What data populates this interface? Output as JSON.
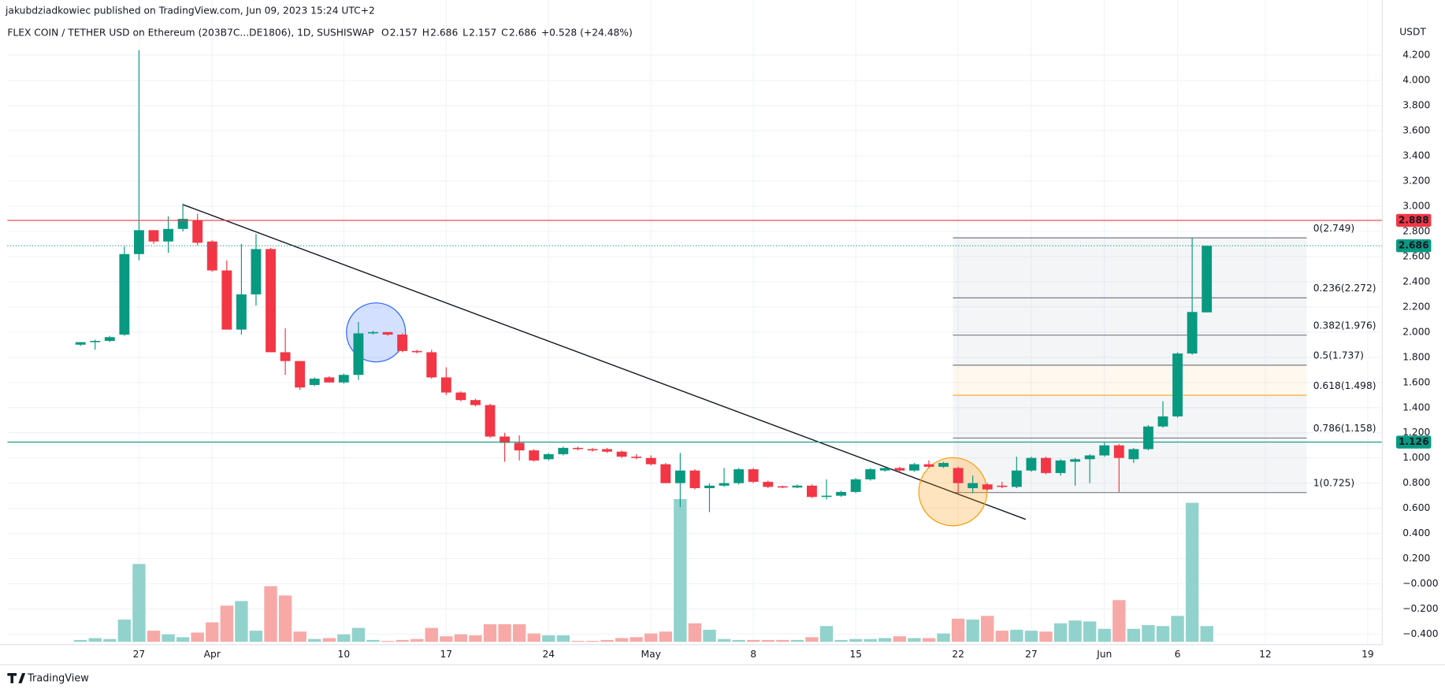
{
  "header": {
    "author_line": "jakubdziadkowiec published on TradingView.com, Jun 09, 2023 15:24 UTC+2",
    "symbol": "FLEX COIN / TETHER USD on Ethereum (203B7C...DE1806), 1D, SUSHISWAP",
    "fields": [
      {
        "key": "O",
        "value": "2.157"
      },
      {
        "key": "H",
        "value": "2.686"
      },
      {
        "key": "L",
        "value": "2.157"
      },
      {
        "key": "C",
        "value": "2.686"
      }
    ],
    "change": "+0.528 (+24.48%)",
    "currency": "USDT"
  },
  "footer": {
    "brand": "TradingView"
  },
  "chart_data": {
    "type": "candlestick",
    "up_color": "#089981",
    "down_color": "#f23645",
    "volume_up_color": "#92d2cc",
    "volume_down_color": "#f7a9a7",
    "categories": [
      "Mar 23",
      "Mar 24",
      "Mar 25",
      "Mar 26",
      "Mar 27",
      "Mar 28",
      "Mar 29",
      "Mar 30",
      "Mar 31",
      "Apr 1",
      "Apr 2",
      "Apr 3",
      "Apr 4",
      "Apr 5",
      "Apr 6",
      "Apr 7",
      "Apr 8",
      "Apr 9",
      "Apr 10",
      "Apr 11",
      "Apr 12",
      "Apr 13",
      "Apr 14",
      "Apr 15",
      "Apr 16",
      "Apr 17",
      "Apr 18",
      "Apr 19",
      "Apr 20",
      "Apr 21",
      "Apr 22",
      "Apr 23",
      "Apr 24",
      "Apr 25",
      "Apr 26",
      "Apr 27",
      "Apr 28",
      "Apr 29",
      "Apr 30",
      "May 1",
      "May 2",
      "May 3",
      "May 4",
      "May 5",
      "May 6",
      "May 7",
      "May 8",
      "May 9",
      "May 10",
      "May 11",
      "May 12",
      "May 13",
      "May 14",
      "May 15",
      "May 16",
      "May 17",
      "May 18",
      "May 19",
      "May 20",
      "May 21",
      "May 22",
      "May 23",
      "May 24",
      "May 25",
      "May 26",
      "May 27",
      "May 28",
      "May 29",
      "May 30",
      "May 31",
      "Jun 1",
      "Jun 2",
      "Jun 3",
      "Jun 4",
      "Jun 5",
      "Jun 6",
      "Jun 7",
      "Jun 8"
    ],
    "open": [
      1.9,
      1.92,
      1.93,
      1.98,
      2.62,
      2.81,
      2.72,
      2.82,
      2.89,
      2.72,
      2.49,
      2.02,
      2.3,
      2.66,
      1.84,
      1.77,
      1.58,
      1.64,
      1.6,
      1.66,
      1.99,
      2.0,
      1.98,
      1.85,
      1.84,
      1.64,
      1.52,
      1.46,
      1.42,
      1.17,
      1.12,
      1.06,
      0.99,
      1.03,
      1.08,
      1.07,
      1.07,
      1.05,
      1.01,
      1.0,
      0.95,
      0.8,
      0.9,
      0.76,
      0.78,
      0.8,
      0.91,
      0.81,
      0.775,
      0.765,
      0.78,
      0.69,
      0.7,
      0.73,
      0.83,
      0.9,
      0.92,
      0.9,
      0.95,
      0.93,
      0.92,
      0.76,
      0.79,
      0.78,
      0.77,
      0.9,
      1.0,
      0.88,
      0.97,
      0.99,
      1.02,
      1.1,
      0.99,
      1.07,
      1.25,
      1.33,
      1.83,
      2.157
    ],
    "high": [
      1.92,
      1.94,
      1.97,
      2.68,
      4.24,
      2.81,
      2.92,
      3.02,
      2.94,
      2.73,
      2.57,
      2.7,
      2.78,
      2.67,
      2.03,
      1.77,
      1.64,
      1.65,
      1.67,
      2.08,
      2.01,
      2.0,
      1.99,
      1.86,
      1.86,
      1.72,
      1.53,
      1.47,
      1.43,
      1.2,
      1.18,
      1.07,
      1.04,
      1.09,
      1.09,
      1.08,
      1.08,
      1.06,
      1.03,
      1.02,
      0.96,
      1.04,
      0.91,
      0.8,
      0.92,
      0.92,
      0.92,
      0.82,
      0.78,
      0.79,
      0.79,
      0.83,
      0.74,
      0.84,
      0.92,
      0.93,
      0.93,
      0.96,
      0.98,
      0.97,
      0.93,
      0.86,
      0.8,
      0.81,
      1.01,
      1.01,
      1.01,
      0.99,
      1.0,
      1.03,
      1.12,
      1.11,
      1.08,
      1.26,
      1.45,
      1.84,
      2.75,
      2.686
    ],
    "low": [
      1.89,
      1.86,
      1.92,
      1.97,
      2.57,
      2.7,
      2.63,
      2.8,
      2.69,
      2.48,
      2.02,
      1.98,
      2.21,
      1.84,
      1.66,
      1.54,
      1.57,
      1.6,
      1.59,
      1.62,
      1.98,
      1.97,
      1.84,
      1.83,
      1.63,
      1.5,
      1.45,
      1.41,
      1.16,
      0.97,
      0.98,
      0.97,
      0.98,
      1.02,
      1.06,
      1.05,
      1.04,
      1.0,
      0.99,
      0.94,
      0.8,
      0.61,
      0.75,
      0.57,
      0.77,
      0.79,
      0.8,
      0.76,
      0.76,
      0.76,
      0.68,
      0.67,
      0.69,
      0.72,
      0.82,
      0.89,
      0.89,
      0.89,
      0.92,
      0.92,
      0.72,
      0.72,
      0.74,
      0.76,
      0.76,
      0.89,
      0.87,
      0.86,
      0.78,
      0.8,
      1.01,
      0.73,
      0.96,
      1.06,
      1.24,
      1.32,
      1.82,
      2.157
    ],
    "close": [
      1.92,
      1.93,
      1.96,
      2.62,
      2.81,
      2.72,
      2.82,
      2.9,
      2.71,
      2.49,
      2.02,
      2.3,
      2.66,
      1.84,
      1.77,
      1.56,
      1.63,
      1.6,
      1.66,
      1.99,
      2.0,
      1.98,
      1.85,
      1.84,
      1.64,
      1.52,
      1.46,
      1.42,
      1.17,
      1.12,
      1.06,
      0.98,
      1.03,
      1.08,
      1.07,
      1.06,
      1.05,
      1.01,
      1.0,
      0.95,
      0.8,
      0.9,
      0.76,
      0.78,
      0.8,
      0.91,
      0.81,
      0.77,
      0.765,
      0.78,
      0.69,
      0.7,
      0.73,
      0.83,
      0.91,
      0.92,
      0.9,
      0.95,
      0.93,
      0.96,
      0.8,
      0.8,
      0.75,
      0.77,
      0.9,
      1.0,
      0.88,
      0.98,
      0.99,
      1.02,
      1.1,
      1.0,
      1.07,
      1.25,
      1.33,
      1.83,
      2.16,
      2.686
    ],
    "volume": [
      2,
      4,
      3,
      24,
      84,
      12,
      8,
      5,
      10,
      21,
      39,
      44,
      12,
      60,
      50,
      11,
      3,
      4,
      8,
      15,
      2,
      1,
      2,
      3,
      15,
      6,
      8,
      7,
      19,
      19,
      19,
      9,
      7,
      7,
      1,
      1,
      2,
      4,
      5,
      9,
      11,
      154,
      20,
      13,
      3,
      2,
      2,
      2,
      2,
      2,
      5,
      17,
      2,
      3,
      3,
      4,
      6,
      4,
      4,
      9,
      25,
      24,
      28,
      12,
      13,
      12,
      11,
      20,
      23,
      22,
      14,
      45,
      14,
      18,
      17,
      28,
      150,
      17
    ],
    "xlim": [
      "Mar 18",
      "Jun 20"
    ],
    "xticks": [
      {
        "value": "Mar 27",
        "label": "27"
      },
      {
        "value": "Apr 1",
        "label": "Apr"
      },
      {
        "value": "Apr 10",
        "label": "10"
      },
      {
        "value": "Apr 17",
        "label": "17"
      },
      {
        "value": "Apr 24",
        "label": "24"
      },
      {
        "value": "May 1",
        "label": "May"
      },
      {
        "value": "May 8",
        "label": "8"
      },
      {
        "value": "May 15",
        "label": "15"
      },
      {
        "value": "May 22",
        "label": "22"
      },
      {
        "value": "May 27",
        "label": "27"
      },
      {
        "value": "Jun 1",
        "label": "Jun"
      },
      {
        "value": "Jun 6",
        "label": "6"
      },
      {
        "value": "Jun 12",
        "label": "12"
      },
      {
        "value": "Jun 19",
        "label": "19"
      }
    ],
    "ylim": [
      -0.483,
      4.639
    ],
    "yticks": [
      {
        "value": -0.4,
        "label": "−0.400"
      },
      {
        "value": -0.2,
        "label": "−0.200"
      },
      {
        "value": 0,
        "label": "−0.000"
      },
      {
        "value": 0.2,
        "label": "0.200"
      },
      {
        "value": 0.4,
        "label": "0.400"
      },
      {
        "value": 0.6,
        "label": "0.600"
      },
      {
        "value": 0.8,
        "label": "0.800"
      },
      {
        "value": 1.0,
        "label": "1.000"
      },
      {
        "value": 1.2,
        "label": "1.200"
      },
      {
        "value": 1.4,
        "label": "1.400"
      },
      {
        "value": 1.6,
        "label": "1.600"
      },
      {
        "value": 1.8,
        "label": "1.800"
      },
      {
        "value": 2.0,
        "label": "2.000"
      },
      {
        "value": 2.2,
        "label": "2.200"
      },
      {
        "value": 2.4,
        "label": "2.400"
      },
      {
        "value": 2.6,
        "label": "2.600"
      },
      {
        "value": 2.8,
        "label": "2.800"
      },
      {
        "value": 3.0,
        "label": "3.000"
      },
      {
        "value": 3.2,
        "label": "3.200"
      },
      {
        "value": 3.4,
        "label": "3.400"
      },
      {
        "value": 3.6,
        "label": "3.600"
      },
      {
        "value": 3.8,
        "label": "3.800"
      },
      {
        "value": 4.0,
        "label": "4.000"
      },
      {
        "value": 4.2,
        "label": "4.200"
      }
    ],
    "grid": true,
    "price_lines": [
      {
        "value": 2.888,
        "label": "2.888",
        "color": "#f23645",
        "style": "solid"
      },
      {
        "value": 2.686,
        "label": "2.686",
        "color": "#089981",
        "style": "dotted"
      },
      {
        "value": 1.126,
        "label": "1.126",
        "color": "#089981",
        "style": "solid"
      }
    ],
    "fib_levels": [
      {
        "value": 2.749,
        "label": "0(2.749)",
        "color": "#787b86"
      },
      {
        "value": 2.272,
        "label": "0.236(2.272)",
        "color": "#787b86"
      },
      {
        "value": 1.976,
        "label": "0.382(1.976)",
        "color": "#787b86"
      },
      {
        "value": 1.737,
        "label": "0.5(1.737)",
        "color": "#787b86"
      },
      {
        "value": 1.498,
        "label": "0.618(1.498)",
        "color": "#f5a623"
      },
      {
        "value": 1.158,
        "label": "0.786(1.158)",
        "color": "#787b86"
      },
      {
        "value": 0.725,
        "label": "1(0.725)",
        "color": "#787b86"
      }
    ]
  }
}
